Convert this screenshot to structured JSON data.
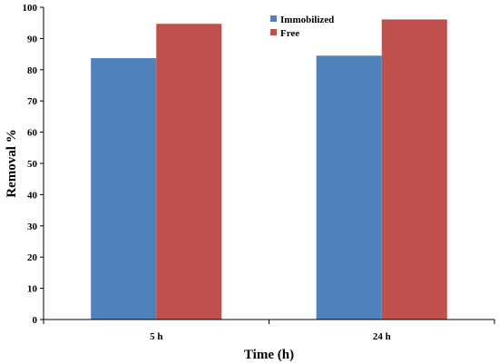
{
  "chart_data": {
    "type": "bar",
    "categories": [
      "5 h",
      "24 h"
    ],
    "series": [
      {
        "name": "Immobilized",
        "values": [
          83.7,
          84.5
        ],
        "color": "#4f81bd"
      },
      {
        "name": "Free",
        "values": [
          94.7,
          96.1
        ],
        "color": "#c0504d"
      }
    ],
    "xlabel": "Time (h)",
    "ylabel": "Removal %",
    "ylim": [
      0,
      100
    ],
    "yticks": [
      0,
      10,
      20,
      30,
      40,
      50,
      60,
      70,
      80,
      90,
      100
    ],
    "grid": false,
    "legend_position": "top-right"
  }
}
